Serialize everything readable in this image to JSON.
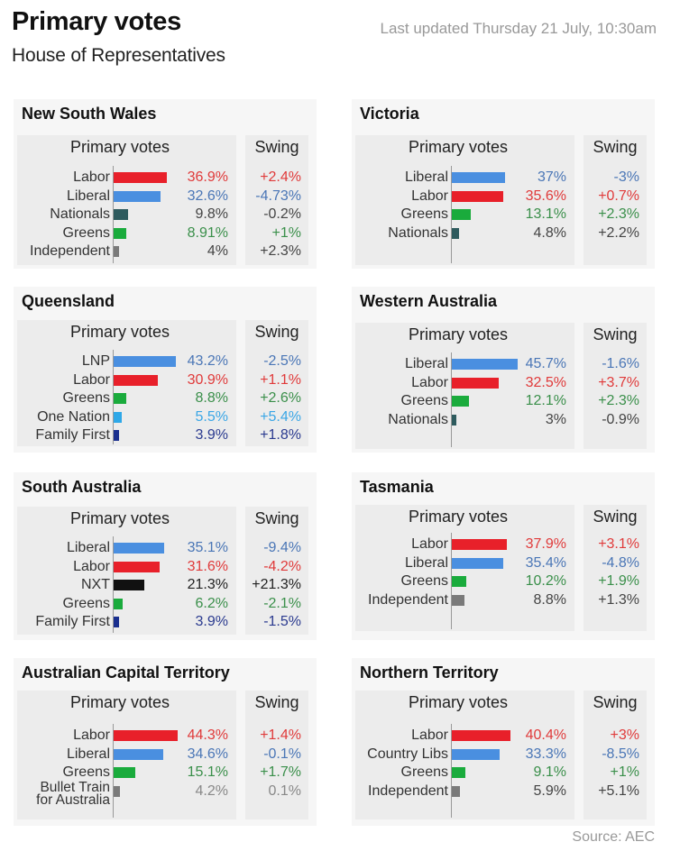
{
  "header": {
    "title": "Primary votes",
    "subtitle": "House of Representatives",
    "updated": "Last updated Thursday 21 July, 10:30am"
  },
  "footer": {
    "source": "Source: AEC"
  },
  "colors": {
    "Labor": "#e8202a",
    "Liberal": "#4a8fe0",
    "LNP": "#4a8fe0",
    "Country Libs": "#4a8fe0",
    "Nationals": "#2e5b5e",
    "Greens": "#1aab3c",
    "Independent": "#7a7a7a",
    "One Nation": "#2ea8e8",
    "Family First": "#1a2f8f",
    "NXT": "#111111",
    "Bullet Train for Australia": "#7a7a7a"
  },
  "text_colors": {
    "Labor": "#e03a3a",
    "Liberal": "#4a76b6",
    "LNP": "#4a76b6",
    "Country Libs": "#4a76b6",
    "Nationals": "#444444",
    "Greens": "#3a8f4a",
    "Independent": "#444444",
    "One Nation": "#3aa6e6",
    "Family First": "#2a3a8f",
    "NXT": "#222222",
    "Bullet Train for Australia": "#888888"
  },
  "labels": {
    "votes_head": "Primary votes",
    "swing_head": "Swing"
  },
  "chart_data": [
    {
      "type": "bar",
      "title": "New South Wales",
      "categories": [
        "Labor",
        "Liberal",
        "Nationals",
        "Greens",
        "Independent"
      ],
      "values": [
        36.9,
        32.6,
        9.8,
        8.91,
        4
      ],
      "value_labels": [
        "36.9%",
        "32.6%",
        "9.8%",
        "8.91%",
        "4%"
      ],
      "swing": [
        "+2.4%",
        "-4.73%",
        "-0.2%",
        "+1%",
        "+2.3%"
      ]
    },
    {
      "type": "bar",
      "title": "Victoria",
      "categories": [
        "Liberal",
        "Labor",
        "Greens",
        "Nationals"
      ],
      "values": [
        37,
        35.6,
        13.1,
        4.8
      ],
      "value_labels": [
        "37%",
        "35.6%",
        "13.1%",
        "4.8%"
      ],
      "swing": [
        "-3%",
        "+0.7%",
        "+2.3%",
        "+2.2%"
      ]
    },
    {
      "type": "bar",
      "title": "Queensland",
      "categories": [
        "LNP",
        "Labor",
        "Greens",
        "One Nation",
        "Family First"
      ],
      "values": [
        43.2,
        30.9,
        8.8,
        5.5,
        3.9
      ],
      "value_labels": [
        "43.2%",
        "30.9%",
        "8.8%",
        "5.5%",
        "3.9%"
      ],
      "swing": [
        "-2.5%",
        "+1.1%",
        "+2.6%",
        "+5.4%",
        "+1.8%"
      ]
    },
    {
      "type": "bar",
      "title": "Western Australia",
      "categories": [
        "Liberal",
        "Labor",
        "Greens",
        "Nationals"
      ],
      "values": [
        45.7,
        32.5,
        12.1,
        3
      ],
      "value_labels": [
        "45.7%",
        "32.5%",
        "12.1%",
        "3%"
      ],
      "swing": [
        "-1.6%",
        "+3.7%",
        "+2.3%",
        "-0.9%"
      ]
    },
    {
      "type": "bar",
      "title": "South Australia",
      "categories": [
        "Liberal",
        "Labor",
        "NXT",
        "Greens",
        "Family First"
      ],
      "values": [
        35.1,
        31.6,
        21.3,
        6.2,
        3.9
      ],
      "value_labels": [
        "35.1%",
        "31.6%",
        "21.3%",
        "6.2%",
        "3.9%"
      ],
      "swing": [
        "-9.4%",
        "-4.2%",
        "+21.3%",
        "-2.1%",
        "-1.5%"
      ]
    },
    {
      "type": "bar",
      "title": "Tasmania",
      "categories": [
        "Labor",
        "Liberal",
        "Greens",
        "Independent"
      ],
      "values": [
        37.9,
        35.4,
        10.2,
        8.8
      ],
      "value_labels": [
        "37.9%",
        "35.4%",
        "10.2%",
        "8.8%"
      ],
      "swing": [
        "+3.1%",
        "-4.8%",
        "+1.9%",
        "+1.3%"
      ]
    },
    {
      "type": "bar",
      "title": "Australian Capital Territory",
      "categories": [
        "Labor",
        "Liberal",
        "Greens",
        "Bullet Train for Australia"
      ],
      "category_lines": [
        [
          "Labor"
        ],
        [
          "Liberal"
        ],
        [
          "Greens"
        ],
        [
          "Bullet Train",
          "for Australia"
        ]
      ],
      "values": [
        44.3,
        34.6,
        15.1,
        4.2
      ],
      "value_labels": [
        "44.3%",
        "34.6%",
        "15.1%",
        "4.2%"
      ],
      "swing": [
        "+1.4%",
        "-0.1%",
        "+1.7%",
        "0.1%"
      ]
    },
    {
      "type": "bar",
      "title": "Northern Territory",
      "categories": [
        "Labor",
        "Country Libs",
        "Greens",
        "Independent"
      ],
      "values": [
        40.4,
        33.3,
        9.1,
        5.9
      ],
      "value_labels": [
        "40.4%",
        "33.3%",
        "9.1%",
        "5.9%"
      ],
      "swing": [
        "+3%",
        "-8.5%",
        "+1%",
        "+5.1%"
      ]
    }
  ]
}
